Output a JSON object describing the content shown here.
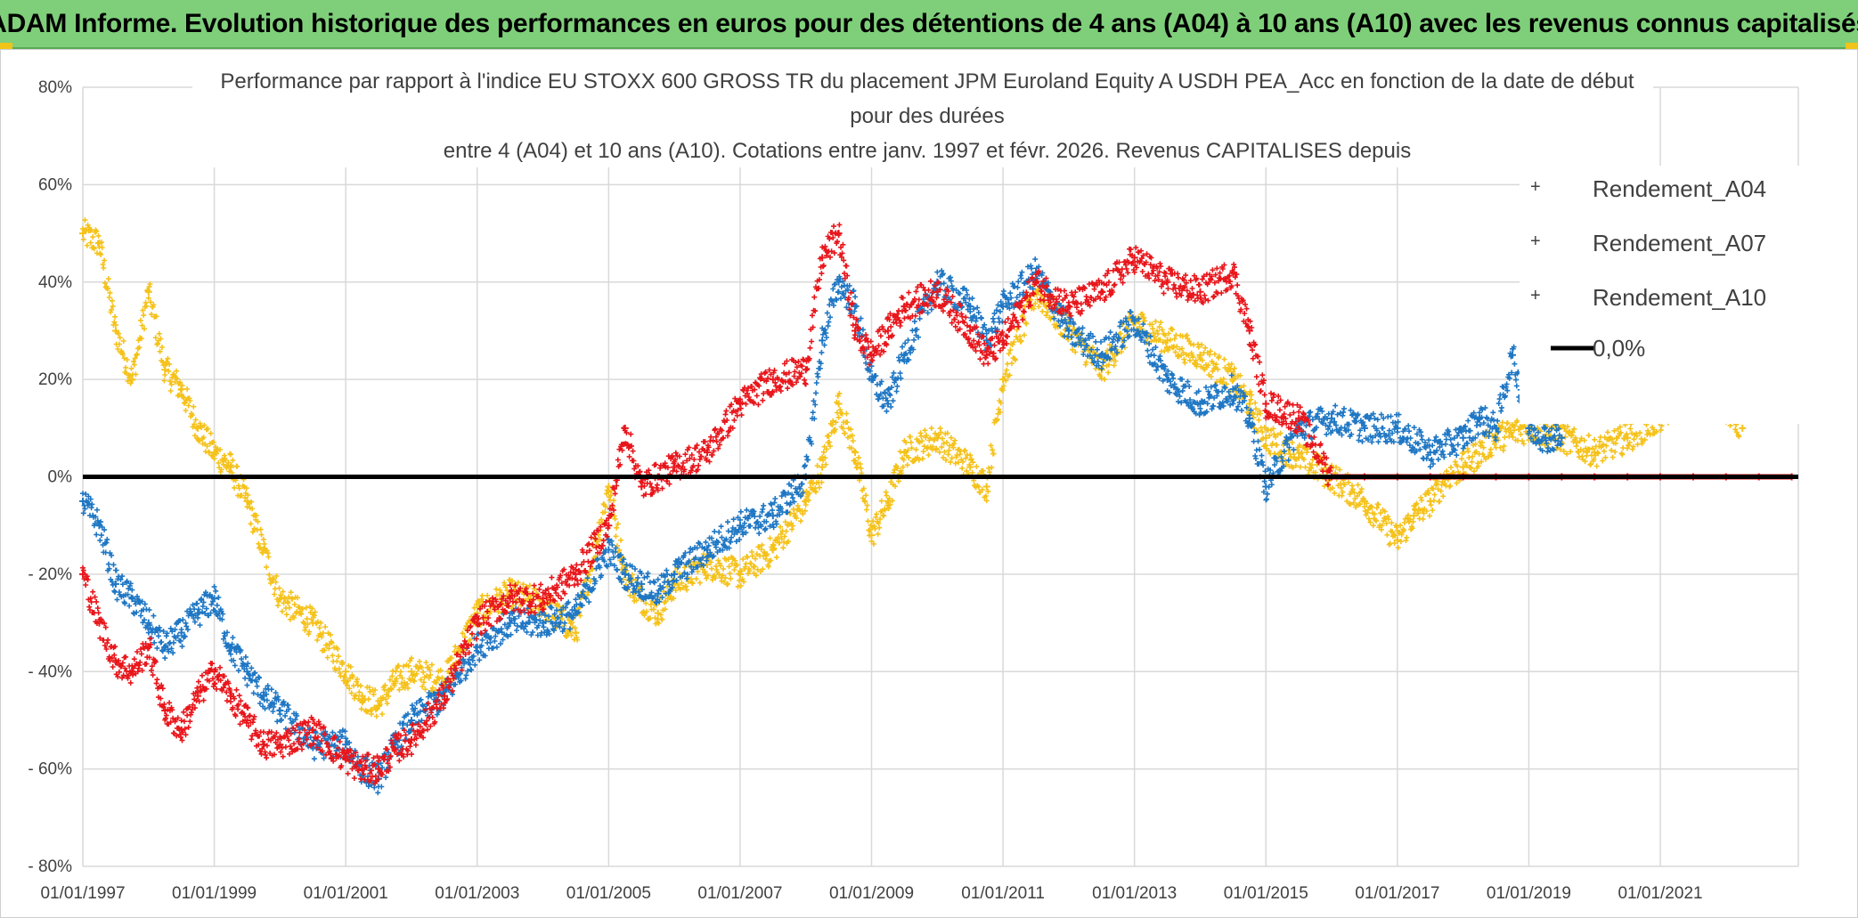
{
  "banner": {
    "title": "ADAM Informe. Evolution historique des performances en euros pour des détentions de 4 ans (A04) à 10 ans (A10) avec les revenus connus capitalisés"
  },
  "colors": {
    "banner_bg": "#7fcf7a",
    "a04": "#f5c21b",
    "a07": "#1f77c4",
    "a10": "#e8161b",
    "zero_line": "#000000",
    "grid": "#d9d9d9"
  },
  "chart_data": {
    "type": "scatter",
    "title_lines": [
      "Performance par rapport à l'indice EU STOXX 600 GROSS TR  du placement JPM Euroland Equity A USDH PEA_Acc en fonction de la date de début",
      "pour des durées",
      "entre 4 (A04) et 10 ans (A10). Cotations entre janv. 1997 et févr. 2026. Revenus CAPITALISES depuis"
    ],
    "x_unit": "years since 01/01/1997",
    "xlim": [
      0,
      26.1
    ],
    "ylim": [
      -80,
      80
    ],
    "y_ticks": [
      80,
      60,
      40,
      20,
      0,
      -20,
      -40,
      -60,
      -80
    ],
    "y_tick_labels": [
      "80%",
      "60%",
      "40%",
      "20%",
      "0%",
      "- 20%",
      "- 40%",
      "- 60%",
      "- 80%"
    ],
    "x_tick_labels": [
      "01/01/1997",
      "01/01/1999",
      "01/01/2001",
      "01/01/2003",
      "01/01/2005",
      "01/01/2007",
      "01/01/2009",
      "01/01/2011",
      "01/01/2013",
      "01/01/2015",
      "01/01/2017",
      "01/01/2019",
      "01/01/2021"
    ],
    "x_tick_values": [
      0,
      2,
      4,
      6,
      8,
      10,
      12,
      14,
      16,
      18,
      20,
      22,
      24
    ],
    "legend": {
      "position": "top-right",
      "entries": [
        "Rendement_A04",
        "Rendement_A07",
        "Rendement_A10",
        "0,0%"
      ]
    },
    "series": [
      {
        "name": "Rendement_A04",
        "x": [
          0,
          0.25,
          0.5,
          0.75,
          1.0,
          1.25,
          1.5,
          1.75,
          2.0,
          2.25,
          2.5,
          2.75,
          3.0,
          3.5,
          4.0,
          4.25,
          4.5,
          4.75,
          5.0,
          5.5,
          6.0,
          6.5,
          7.0,
          7.5,
          8.0,
          8.25,
          8.5,
          8.75,
          9.0,
          9.5,
          10.0,
          10.5,
          11.0,
          11.25,
          11.5,
          11.75,
          12.0,
          12.25,
          12.5,
          13.0,
          13.5,
          13.75,
          14.0,
          14.5,
          15.0,
          15.5,
          16.0,
          16.5,
          17.0,
          17.5,
          17.75,
          18.0,
          18.5,
          19.0,
          19.5,
          20.0,
          20.25,
          20.5,
          20.75,
          21.0,
          21.5,
          22.0,
          22.5,
          23.0,
          23.5,
          24.0,
          24.25,
          24.5,
          24.75,
          25.0,
          25.25
        ],
        "y": [
          50,
          48,
          30,
          20,
          38,
          22,
          18,
          10,
          5,
          2,
          -5,
          -15,
          -25,
          -30,
          -40,
          -45,
          -47,
          -42,
          -40,
          -42,
          -28,
          -24,
          -26,
          -32,
          -2,
          -20,
          -25,
          -28,
          -22,
          -18,
          -20,
          -15,
          -5,
          2,
          15,
          5,
          -12,
          -5,
          5,
          8,
          2,
          -2,
          20,
          38,
          30,
          22,
          32,
          28,
          25,
          20,
          15,
          8,
          4,
          0,
          -5,
          -13,
          -8,
          -5,
          0,
          2,
          8,
          10,
          8,
          5,
          8,
          12,
          15,
          20,
          18,
          14,
          10
        ]
      },
      {
        "name": "Rendement_A07",
        "x": [
          0,
          0.25,
          0.5,
          0.75,
          1.0,
          1.25,
          1.5,
          1.75,
          2.0,
          2.25,
          2.5,
          2.75,
          3.0,
          3.5,
          4.0,
          4.25,
          4.5,
          4.75,
          5.0,
          5.5,
          6.0,
          6.5,
          7.0,
          7.5,
          8.0,
          8.25,
          8.5,
          8.75,
          9.0,
          9.5,
          10.0,
          10.5,
          11.0,
          11.25,
          11.5,
          11.75,
          12.0,
          12.25,
          12.5,
          13.0,
          13.5,
          13.75,
          14.0,
          14.5,
          15.0,
          15.5,
          16.0,
          16.5,
          17.0,
          17.5,
          17.75,
          18.0,
          18.5,
          19.0,
          19.5,
          20.0,
          20.5,
          21.0,
          21.25,
          21.5,
          21.75,
          22.0,
          22.25,
          22.5
        ],
        "y": [
          -5,
          -10,
          -22,
          -25,
          -30,
          -35,
          -32,
          -28,
          -25,
          -35,
          -40,
          -45,
          -48,
          -55,
          -55,
          -60,
          -62,
          -55,
          -50,
          -45,
          -35,
          -30,
          -30,
          -28,
          -15,
          -20,
          -22,
          -24,
          -20,
          -15,
          -10,
          -8,
          0,
          28,
          40,
          35,
          20,
          15,
          25,
          40,
          35,
          28,
          35,
          42,
          30,
          25,
          32,
          20,
          15,
          18,
          12,
          -2,
          10,
          12,
          10,
          10,
          5,
          8,
          12,
          10,
          25,
          10,
          8,
          8
        ]
      },
      {
        "name": "Rendement_A10",
        "x": [
          0,
          0.25,
          0.5,
          0.75,
          1.0,
          1.25,
          1.5,
          1.75,
          2.0,
          2.25,
          2.5,
          2.75,
          3.0,
          3.5,
          4.0,
          4.25,
          4.5,
          4.75,
          5.0,
          5.5,
          6.0,
          6.5,
          7.0,
          7.5,
          8.0,
          8.25,
          8.5,
          8.75,
          9.0,
          9.5,
          10.0,
          10.5,
          11.0,
          11.25,
          11.5,
          11.75,
          12.0,
          12.25,
          12.5,
          13.0,
          13.5,
          13.75,
          14.0,
          14.5,
          15.0,
          15.5,
          16.0,
          16.5,
          17.0,
          17.5,
          17.75,
          18.0,
          18.5,
          19.0,
          19.5,
          20.0,
          20.5,
          21.0,
          21.5,
          22.0,
          22.5,
          23.0,
          23.5,
          24.0,
          24.5,
          25.0,
          25.5,
          26.0
        ],
        "y": [
          -20,
          -30,
          -38,
          -40,
          -35,
          -48,
          -52,
          -45,
          -40,
          -45,
          -50,
          -55,
          -55,
          -52,
          -58,
          -60,
          -60,
          -56,
          -54,
          -45,
          -30,
          -25,
          -25,
          -20,
          -10,
          10,
          -2,
          0,
          2,
          5,
          15,
          20,
          22,
          45,
          50,
          30,
          25,
          30,
          35,
          38,
          30,
          25,
          28,
          40,
          35,
          38,
          45,
          40,
          38,
          42,
          30,
          15,
          12,
          0,
          0,
          0,
          0,
          0,
          0,
          0,
          0,
          0,
          0,
          0,
          0,
          0,
          0,
          0
        ]
      },
      {
        "name": "0,0%",
        "x": [
          0,
          26.1
        ],
        "y": [
          0,
          0
        ]
      }
    ]
  }
}
